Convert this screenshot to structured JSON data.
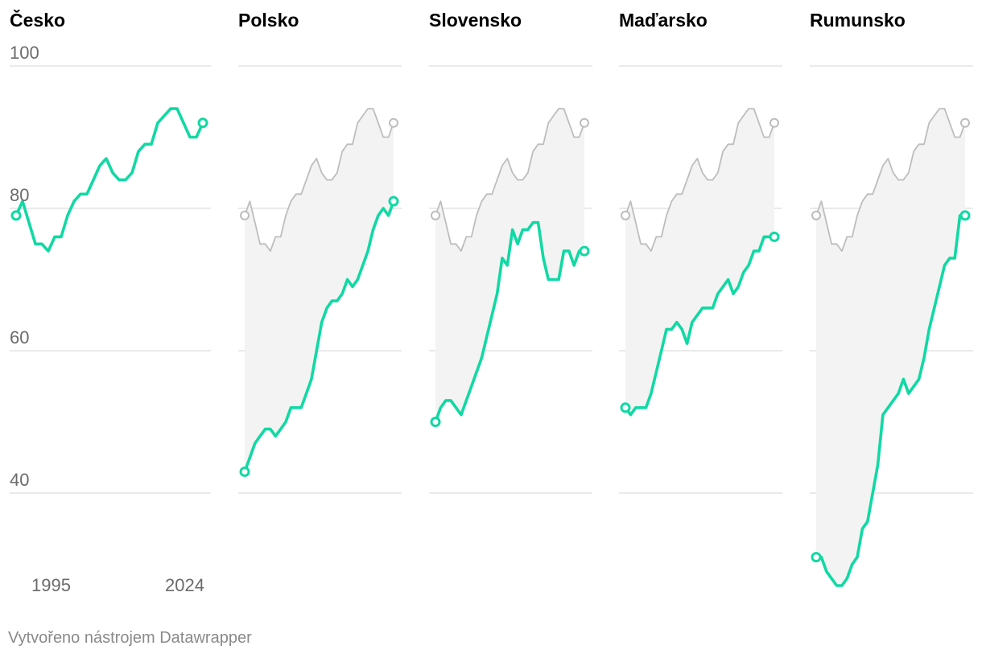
{
  "footer": "Vytvořeno nástrojem Datawrapper",
  "colors": {
    "accent": "#10d9a3",
    "reference": "#bdbdbd",
    "fill": "#f3f3f3",
    "grid": "#dddddd",
    "text": "#000000",
    "muted": "#6b6b6b"
  },
  "chart_data": {
    "type": "line",
    "layout": "small-multiples",
    "x": [
      1995,
      1996,
      1997,
      1998,
      1999,
      2000,
      2001,
      2002,
      2003,
      2004,
      2005,
      2006,
      2007,
      2008,
      2009,
      2010,
      2011,
      2012,
      2013,
      2014,
      2015,
      2016,
      2017,
      2018,
      2019,
      2020,
      2021,
      2022,
      2023,
      2024
    ],
    "x_ticks": [
      "1995",
      "2024"
    ],
    "y_ticks": [
      "100",
      "80",
      "60",
      "40"
    ],
    "ylim": [
      27,
      100
    ],
    "grid": true,
    "reference_series": "Česko",
    "panels": [
      {
        "title": "Česko",
        "values": [
          79,
          81,
          78,
          75,
          75,
          74,
          76,
          76,
          79,
          81,
          82,
          82,
          84,
          86,
          87,
          85,
          84,
          84,
          85,
          88,
          89,
          89,
          92,
          93,
          94,
          94,
          92,
          90,
          90,
          92
        ]
      },
      {
        "title": "Polsko",
        "values": [
          43,
          45,
          47,
          48,
          49,
          49,
          48,
          49,
          50,
          52,
          52,
          52,
          54,
          56,
          60,
          64,
          66,
          67,
          67,
          68,
          70,
          69,
          70,
          72,
          74,
          77,
          79,
          80,
          79,
          81
        ]
      },
      {
        "title": "Slovensko",
        "values": [
          50,
          52,
          53,
          53,
          52,
          51,
          53,
          55,
          57,
          59,
          62,
          65,
          68,
          73,
          72,
          77,
          75,
          77,
          77,
          78,
          78,
          73,
          70,
          70,
          70,
          74,
          74,
          72,
          74,
          74
        ]
      },
      {
        "title": "Maďarsko",
        "values": [
          52,
          51,
          52,
          52,
          52,
          54,
          57,
          60,
          63,
          63,
          64,
          63,
          61,
          64,
          65,
          66,
          66,
          66,
          68,
          69,
          70,
          68,
          69,
          71,
          72,
          74,
          74,
          76,
          76,
          76
        ]
      },
      {
        "title": "Rumunsko",
        "values": [
          31,
          31,
          29,
          28,
          27,
          27,
          28,
          30,
          31,
          35,
          36,
          40,
          44,
          51,
          52,
          53,
          54,
          56,
          54,
          55,
          56,
          59,
          63,
          66,
          69,
          72,
          73,
          73,
          79,
          79
        ]
      }
    ]
  }
}
